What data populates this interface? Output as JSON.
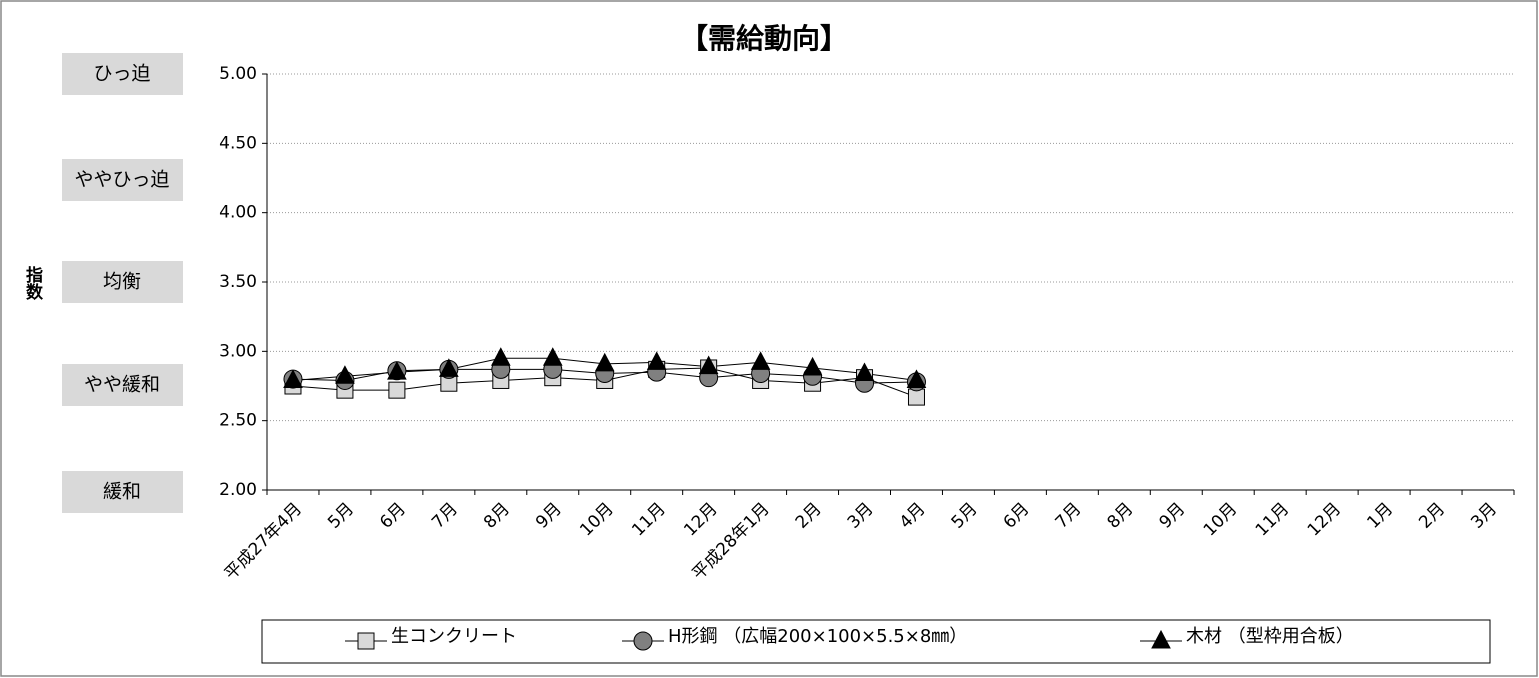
{
  "chart_data": {
    "type": "line",
    "title": "【需給動向】",
    "y_label": "指数",
    "band_labels": [
      "ひっ迫",
      "ややひっ迫",
      "均衡",
      "やや緩和",
      "緩和"
    ],
    "categories": [
      "平成27年4月",
      "5月",
      "6月",
      "7月",
      "8月",
      "9月",
      "10月",
      "11月",
      "12月",
      "平成28年1月",
      "2月",
      "3月",
      "4月",
      "5月",
      "6月",
      "7月",
      "8月",
      "9月",
      "10月",
      "11月",
      "12月",
      "1月",
      "2月",
      "3月"
    ],
    "series": [
      {
        "name": "生コンクリート",
        "marker": "square",
        "color": "#d9d9d9",
        "values": [
          2.75,
          2.72,
          2.72,
          2.77,
          2.79,
          2.81,
          2.79,
          2.87,
          2.88,
          2.79,
          2.77,
          2.81,
          2.67,
          null,
          null,
          null,
          null,
          null,
          null,
          null,
          null,
          null,
          null,
          null
        ]
      },
      {
        "name": "H形鋼 （広幅200×100×5.5×8㎜）",
        "marker": "circle",
        "color": "#808080",
        "values": [
          2.8,
          2.79,
          2.86,
          2.87,
          2.87,
          2.87,
          2.84,
          2.85,
          2.81,
          2.84,
          2.82,
          2.77,
          2.78,
          null,
          null,
          null,
          null,
          null,
          null,
          null,
          null,
          null,
          null,
          null
        ]
      },
      {
        "name": "木材 （型枠用合板）",
        "marker": "triangle",
        "color": "#000000",
        "values": [
          2.79,
          2.82,
          2.85,
          2.87,
          2.95,
          2.95,
          2.91,
          2.92,
          2.89,
          2.92,
          2.88,
          2.84,
          2.79,
          null,
          null,
          null,
          null,
          null,
          null,
          null,
          null,
          null,
          null,
          null
        ]
      }
    ],
    "ylim": [
      2,
      5
    ],
    "yticks": [
      {
        "value": 2,
        "label": "2.00"
      },
      {
        "value": 2.5,
        "label": "2.50"
      },
      {
        "value": 3,
        "label": "3.00"
      },
      {
        "value": 3.5,
        "label": "3.50"
      },
      {
        "value": 4,
        "label": "4.00"
      },
      {
        "value": 4.5,
        "label": "4.50"
      },
      {
        "value": 5,
        "label": "5.00"
      }
    ],
    "grid": true
  }
}
